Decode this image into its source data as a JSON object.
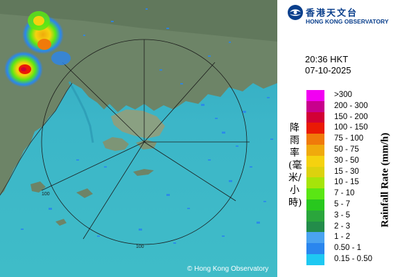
{
  "map": {
    "copyright": "© Hong Kong Observatory",
    "range_ring_labels": [
      "100",
      "100"
    ]
  },
  "header": {
    "logo_zh": "香港天文台",
    "logo_en": "HONG KONG OBSERVATORY",
    "time": "20:36 HKT",
    "date": "07-10-2025"
  },
  "legend": {
    "title_zh": "降雨率(毫米/小時)",
    "title_en": "Rainfall Rate (mm/h)",
    "items": [
      {
        "label": ">300",
        "color": "#f200f2"
      },
      {
        "label": "200 - 300",
        "color": "#c8008c"
      },
      {
        "label": "150 - 200",
        "color": "#d20035"
      },
      {
        "label": "100 - 150",
        "color": "#ea1a05"
      },
      {
        "label": "75 - 100",
        "color": "#f07a0a"
      },
      {
        "label": "50 - 75",
        "color": "#f0aa0c"
      },
      {
        "label": "30 - 50",
        "color": "#f5d20f"
      },
      {
        "label": "15 - 30",
        "color": "#dcd20e"
      },
      {
        "label": "10 - 15",
        "color": "#a6e40a"
      },
      {
        "label": "7 - 10",
        "color": "#5ae614"
      },
      {
        "label": "5 - 7",
        "color": "#28c81e"
      },
      {
        "label": "3 - 5",
        "color": "#2aa63c"
      },
      {
        "label": "2 - 3",
        "color": "#238c4a"
      },
      {
        "label": "1 - 2",
        "color": "#4aa3f0"
      },
      {
        "label": "0.50 - 1",
        "color": "#2a86ee"
      },
      {
        "label": "0.15 - 0.50",
        "color": "#1ec8f2"
      }
    ]
  }
}
